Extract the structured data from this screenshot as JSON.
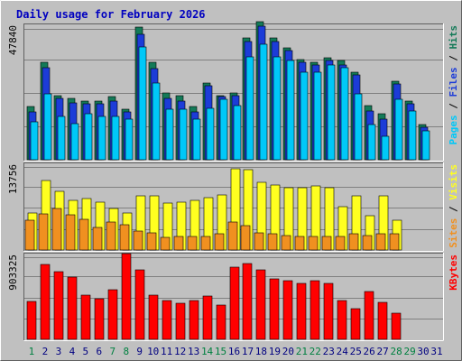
{
  "chart_data": [
    {
      "type": "bar",
      "title": "Daily usage for February 2026",
      "categories": [
        "1",
        "2",
        "3",
        "4",
        "5",
        "6",
        "7",
        "8",
        "9",
        "10",
        "11",
        "12",
        "13",
        "14",
        "15",
        "16",
        "17",
        "18",
        "19",
        "20",
        "21",
        "22",
        "23",
        "24",
        "25",
        "26",
        "27",
        "28",
        "29",
        "30",
        "31"
      ],
      "y_tick_label": "47840",
      "ylim": [
        0,
        47840
      ],
      "grid": true,
      "legend": [
        {
          "label": "Pages",
          "color": "#00c8f8"
        },
        {
          "label": "Files",
          "color": "#1c3cd8"
        },
        {
          "label": "Hits",
          "color": "#137a58"
        }
      ],
      "series": [
        {
          "name": "Hits",
          "color": "#137a58",
          "values": [
            19000,
            35000,
            23000,
            22000,
            21000,
            21000,
            22500,
            18000,
            47500,
            35000,
            24000,
            23000,
            19000,
            27500,
            23000,
            24000,
            43500,
            49500,
            43500,
            40000,
            36000,
            35000,
            36500,
            35500,
            31500,
            19500,
            16500,
            28000,
            21000,
            12500,
            0
          ]
        },
        {
          "name": "Files",
          "color": "#1c3cd8",
          "values": [
            17000,
            33000,
            22000,
            20500,
            20000,
            20000,
            21000,
            17000,
            45000,
            32500,
            22000,
            21000,
            17000,
            26500,
            22500,
            23000,
            42500,
            48000,
            42500,
            39000,
            35000,
            34000,
            35500,
            34000,
            30500,
            17500,
            14500,
            27000,
            20000,
            11500,
            0
          ]
        },
        {
          "name": "Pages",
          "color": "#00c8f8",
          "values": [
            13500,
            23500,
            15500,
            13000,
            16500,
            15500,
            15500,
            14500,
            40500,
            27500,
            18000,
            18000,
            14500,
            18500,
            21500,
            19500,
            37000,
            41500,
            37000,
            35500,
            31500,
            31500,
            34000,
            33000,
            23500,
            12500,
            8500,
            21500,
            17500,
            10500,
            0
          ]
        }
      ]
    },
    {
      "type": "bar",
      "categories": [
        "1",
        "2",
        "3",
        "4",
        "5",
        "6",
        "7",
        "8",
        "9",
        "10",
        "11",
        "12",
        "13",
        "14",
        "15",
        "16",
        "17",
        "18",
        "19",
        "20",
        "21",
        "22",
        "23",
        "24",
        "25",
        "26",
        "27",
        "28",
        "29",
        "30",
        "31"
      ],
      "y_tick_label": "13756",
      "ylim": [
        0,
        13756
      ],
      "grid": true,
      "legend": [
        {
          "label": "Sites",
          "color": "#f09020"
        },
        {
          "label": "Visits",
          "color": "#ffff20"
        }
      ],
      "series": [
        {
          "name": "Visits",
          "color": "#ffff20",
          "values": [
            6000,
            11200,
            9500,
            8000,
            8400,
            7700,
            6700,
            6000,
            8800,
            8800,
            7600,
            7700,
            8000,
            8500,
            8900,
            13200,
            13000,
            11000,
            10600,
            10100,
            10100,
            10400,
            10100,
            7000,
            8800,
            5500,
            8800,
            4800,
            0,
            0,
            0
          ]
        },
        {
          "name": "Sites",
          "color": "#f09020",
          "values": [
            4800,
            5900,
            6700,
            5700,
            5000,
            3600,
            4500,
            4100,
            3000,
            2800,
            2000,
            2200,
            2200,
            2200,
            2600,
            4500,
            4000,
            2800,
            2600,
            2300,
            2200,
            2200,
            2200,
            2200,
            2600,
            2400,
            2600,
            2600,
            0,
            0,
            0
          ]
        }
      ]
    },
    {
      "type": "bar",
      "categories": [
        "1",
        "2",
        "3",
        "4",
        "5",
        "6",
        "7",
        "8",
        "9",
        "10",
        "11",
        "12",
        "13",
        "14",
        "15",
        "16",
        "17",
        "18",
        "19",
        "20",
        "21",
        "22",
        "23",
        "24",
        "25",
        "26",
        "27",
        "28",
        "29",
        "30",
        "31"
      ],
      "y_tick_label": "903325",
      "ylim": [
        0,
        903325
      ],
      "grid": true,
      "legend": [
        {
          "label": "KBytes",
          "color": "#ff0000"
        }
      ],
      "series": [
        {
          "name": "KBytes",
          "color": "#ff0000",
          "values": [
            405000,
            810000,
            730000,
            670000,
            480000,
            440000,
            530000,
            920000,
            750000,
            480000,
            420000,
            385000,
            420000,
            470000,
            365000,
            780000,
            820000,
            750000,
            650000,
            630000,
            600000,
            630000,
            600000,
            420000,
            335000,
            510000,
            400000,
            282000,
            0,
            0,
            0
          ]
        }
      ]
    }
  ],
  "x_axis": {
    "labels": [
      "1",
      "2",
      "3",
      "4",
      "5",
      "6",
      "7",
      "8",
      "9",
      "10",
      "11",
      "12",
      "13",
      "14",
      "15",
      "16",
      "17",
      "18",
      "19",
      "20",
      "21",
      "22",
      "23",
      "24",
      "25",
      "26",
      "27",
      "28",
      "29",
      "30",
      "31"
    ],
    "weekend_days": [
      1,
      7,
      8,
      14,
      15,
      21,
      22,
      28,
      29
    ],
    "weekend_color": "#008040",
    "weekday_color": "#000080"
  },
  "colors": {
    "background": "#c0c0c0",
    "grid": "#808080",
    "title": "#0000c0",
    "legend_separator": "#000000"
  }
}
